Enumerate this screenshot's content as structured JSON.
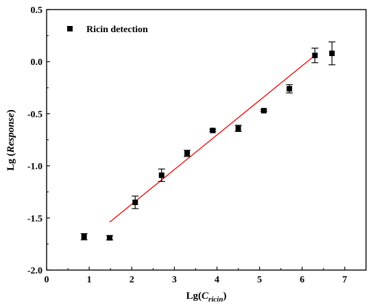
{
  "chart_data": {
    "type": "scatter",
    "xlabel": {
      "prefix": "Lg(",
      "main": "C",
      "sub": "ricin",
      "suffix": ")"
    },
    "ylabel": {
      "prefix": "Lg (",
      "italic": "Response",
      "suffix": ")"
    },
    "xlim": [
      0,
      7.5
    ],
    "ylim": [
      -2.0,
      0.5
    ],
    "xticks": [
      "0",
      "1",
      "2",
      "3",
      "4",
      "5",
      "6",
      "7"
    ],
    "yticks": [
      "0.5",
      "0.0",
      "-0.5",
      "-1.0",
      "-1.5",
      "-2.0"
    ],
    "legend": {
      "label": "Ricin detection",
      "position": "top-left"
    },
    "series": [
      {
        "name": "Ricin detection",
        "marker": "square",
        "color": "#000000",
        "points": [
          {
            "x": 0.88,
            "y": -1.68,
            "err": 0.03
          },
          {
            "x": 1.48,
            "y": -1.69,
            "err": 0.02
          },
          {
            "x": 2.08,
            "y": -1.35,
            "err": 0.06
          },
          {
            "x": 2.7,
            "y": -1.09,
            "err": 0.06
          },
          {
            "x": 3.3,
            "y": -0.88,
            "err": 0.03
          },
          {
            "x": 3.9,
            "y": -0.66,
            "err": 0.01
          },
          {
            "x": 4.5,
            "y": -0.64,
            "err": 0.03
          },
          {
            "x": 5.1,
            "y": -0.47,
            "err": 0.01
          },
          {
            "x": 5.7,
            "y": -0.26,
            "err": 0.04
          },
          {
            "x": 6.3,
            "y": 0.06,
            "err": 0.07
          },
          {
            "x": 6.7,
            "y": 0.08,
            "err": 0.11
          }
        ]
      }
    ],
    "fit_line": {
      "color": "#e8201c",
      "x": [
        1.48,
        6.3
      ],
      "y": [
        -1.54,
        0.06
      ]
    }
  }
}
